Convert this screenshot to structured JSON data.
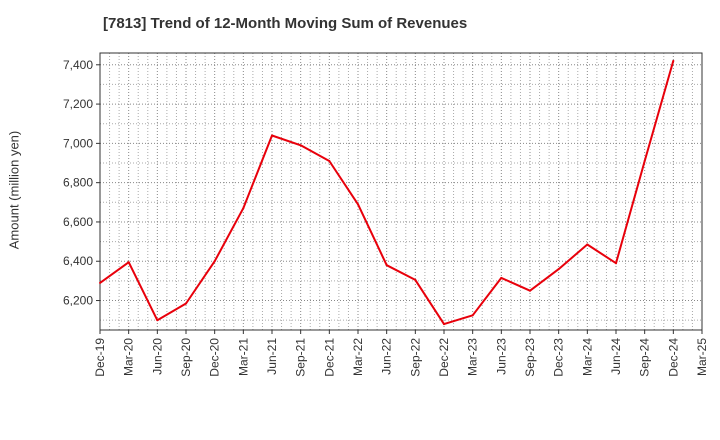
{
  "chart_data": {
    "type": "line",
    "title": "[7813]  Trend of 12-Month Moving Sum of Revenues",
    "xlabel": "",
    "ylabel": "Amount (million yen)",
    "categories": [
      "Dec-19",
      "Mar-20",
      "Jun-20",
      "Sep-20",
      "Dec-20",
      "Mar-21",
      "Jun-21",
      "Sep-21",
      "Dec-21",
      "Mar-22",
      "Jun-22",
      "Sep-22",
      "Dec-22",
      "Mar-23",
      "Jun-23",
      "Sep-23",
      "Dec-23",
      "Mar-24",
      "Jun-24",
      "Sep-24",
      "Dec-24",
      "Mar-25"
    ],
    "series": [
      {
        "name": "",
        "color": "#e8000b",
        "values": [
          6290,
          6395,
          6100,
          6185,
          6400,
          6670,
          7040,
          6990,
          6910,
          6690,
          6380,
          6305,
          6080,
          6125,
          6315,
          6250,
          6360,
          6485,
          6390,
          6910,
          7420,
          null
        ]
      }
    ],
    "ylim": [
      6050,
      7460
    ],
    "yticks": [
      6200,
      6400,
      6600,
      6800,
      7000,
      7200,
      7400
    ],
    "ytick_labels": [
      "6,200",
      "6,400",
      "6,600",
      "6,800",
      "7,000",
      "7,200",
      "7,400"
    ],
    "grid": true,
    "grid_style": "dotted",
    "legend": "none"
  }
}
